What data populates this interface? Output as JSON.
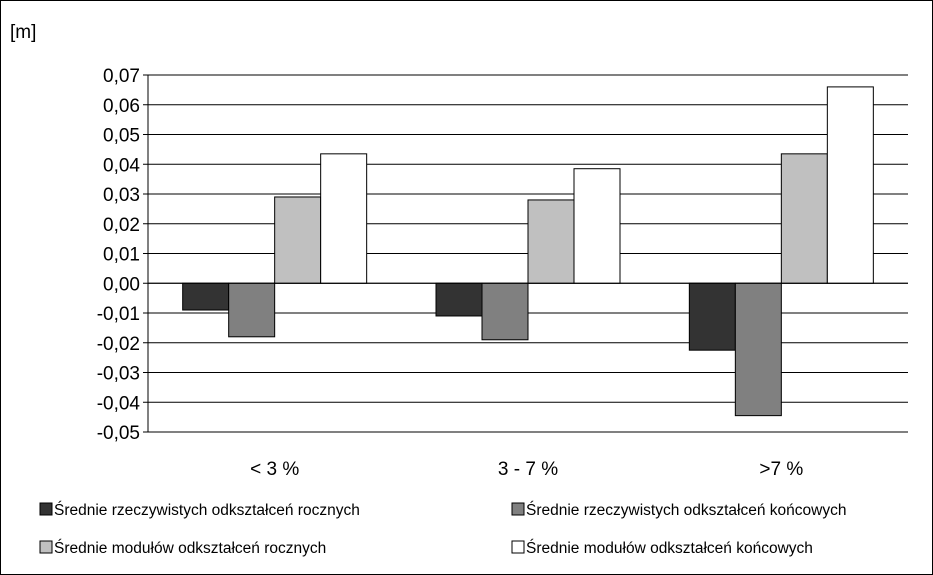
{
  "chart_data": {
    "type": "bar",
    "title": "",
    "ylabel": "[m]",
    "xlabel": "",
    "categories": [
      "< 3 %",
      "3 - 7 %",
      ">7 %"
    ],
    "ylim": [
      -0.05,
      0.07
    ],
    "ytick_step": 0.01,
    "yticks": [
      "-0,05",
      "-0,04",
      "-0,03",
      "-0,02",
      "-0,01",
      "0,00",
      "0,01",
      "0,02",
      "0,03",
      "0,04",
      "0,05",
      "0,06",
      "0,07"
    ],
    "grid": true,
    "legend_position": "bottom",
    "series": [
      {
        "name": "Średnie rzeczywistych odkształceń rocznych",
        "color": "#333333",
        "values": [
          -0.009,
          -0.011,
          -0.0225
        ]
      },
      {
        "name": "Średnie rzeczywistych odkształceń końcowych",
        "color": "#808080",
        "values": [
          -0.018,
          -0.019,
          -0.0445
        ]
      },
      {
        "name": "Średnie modułów odkształceń rocznych",
        "color": "#c0c0c0",
        "values": [
          0.029,
          0.028,
          0.0435
        ]
      },
      {
        "name": "Średnie modułów odkształceń końcowych",
        "color": "#ffffff",
        "values": [
          0.0435,
          0.0385,
          0.066
        ]
      }
    ]
  }
}
